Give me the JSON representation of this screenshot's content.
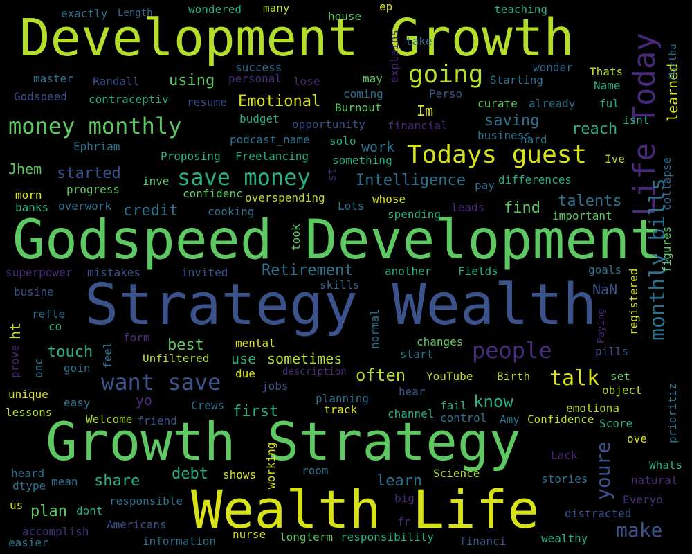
{
  "words": [
    {
      "text": "Development Growth",
      "color": "#b5de2b"
    },
    {
      "text": "Godspeed Development",
      "color": "#5ec962"
    },
    {
      "text": "Strategy Wealth",
      "color": "#3b528b"
    },
    {
      "text": "Growth Strategy",
      "color": "#5ec962"
    },
    {
      "text": "Wealth Life",
      "color": "#d8e219"
    },
    {
      "text": "Life Today",
      "color": "#482878"
    },
    {
      "text": "Todays guest",
      "color": "#d8e219"
    },
    {
      "text": "save money",
      "color": "#29af7f"
    },
    {
      "text": "money monthly",
      "color": "#5ec962"
    },
    {
      "text": "want save",
      "color": "#3b528b"
    },
    {
      "text": "monthly bills",
      "color": "#2c728e"
    },
    {
      "text": "going",
      "color": "#b5de2b"
    },
    {
      "text": "people",
      "color": "#472d7b"
    },
    {
      "text": "talk",
      "color": "#d8e219"
    },
    {
      "text": "make",
      "color": "#3b528b"
    },
    {
      "text": "youre",
      "color": "#3b528b"
    },
    {
      "text": "Intelligence",
      "color": "#2c728e"
    },
    {
      "text": "Emotional",
      "color": "#d8e219"
    },
    {
      "text": "Retirement",
      "color": "#2c728e"
    },
    {
      "text": "saving",
      "color": "#2c728e"
    },
    {
      "text": "started",
      "color": "#3b528b"
    },
    {
      "text": "credit",
      "color": "#2c728e"
    },
    {
      "text": "touch",
      "color": "#29af7f"
    },
    {
      "text": "share",
      "color": "#29af7f"
    },
    {
      "text": "often",
      "color": "#b5de2b"
    },
    {
      "text": "know",
      "color": "#29af7f"
    },
    {
      "text": "learn",
      "color": "#2c728e"
    },
    {
      "text": "first",
      "color": "#29af7f"
    },
    {
      "text": "debt",
      "color": "#29af7f"
    },
    {
      "text": "plan",
      "color": "#5ec962"
    },
    {
      "text": "reach",
      "color": "#29af7f"
    },
    {
      "text": "talents",
      "color": "#2c728e"
    },
    {
      "text": "find",
      "color": "#5ec962"
    },
    {
      "text": "best",
      "color": "#5ec962"
    },
    {
      "text": "sometimes",
      "color": "#b5de2b"
    },
    {
      "text": "use",
      "color": "#29af7f"
    },
    {
      "text": "work",
      "color": "#2c728e"
    },
    {
      "text": "Im",
      "color": "#d8e219"
    },
    {
      "text": "using",
      "color": "#5ec962"
    },
    {
      "text": "Jhem",
      "color": "#5ec962"
    },
    {
      "text": "NaN",
      "color": "#3b528b"
    },
    {
      "text": "learned",
      "color": "#d8e219"
    },
    {
      "text": "yo",
      "color": "#472d7b"
    },
    {
      "text": "ht",
      "color": "#b5de2b"
    },
    {
      "text": "exactly",
      "color": "#2c728e"
    },
    {
      "text": "Length",
      "color": "#31688e"
    },
    {
      "text": "wondered",
      "color": "#29af7f"
    },
    {
      "text": "many",
      "color": "#b5de2b"
    },
    {
      "text": "house",
      "color": "#5ec962"
    },
    {
      "text": "ep",
      "color": "#d8e219"
    },
    {
      "text": "teaching",
      "color": "#29af7f"
    },
    {
      "text": "master",
      "color": "#2c728e"
    },
    {
      "text": "Randall",
      "color": "#3b528b"
    },
    {
      "text": "personal",
      "color": "#472d7b"
    },
    {
      "text": "lose",
      "color": "#472d7b"
    },
    {
      "text": "success",
      "color": "#31688e"
    },
    {
      "text": "explains",
      "color": "#482878"
    },
    {
      "text": "take",
      "color": "#31688e"
    },
    {
      "text": "may",
      "color": "#5ec962"
    },
    {
      "text": "coming",
      "color": "#2c728e"
    },
    {
      "text": "wonder",
      "color": "#31688e"
    },
    {
      "text": "Thats",
      "color": "#b5de2b"
    },
    {
      "text": "Name",
      "color": "#29af7f"
    },
    {
      "text": "Martha",
      "color": "#2c728e"
    },
    {
      "text": "Godspeed",
      "color": "#3b528b"
    },
    {
      "text": "contraceptiv",
      "color": "#29af7f"
    },
    {
      "text": "resume",
      "color": "#3b528b"
    },
    {
      "text": "Burnout",
      "color": "#5ec962"
    },
    {
      "text": "Perso",
      "color": "#3b528b"
    },
    {
      "text": "Starting",
      "color": "#2c728e"
    },
    {
      "text": "curate",
      "color": "#5ec962"
    },
    {
      "text": "already",
      "color": "#2c728e"
    },
    {
      "text": "ful",
      "color": "#29af7f"
    },
    {
      "text": "budget",
      "color": "#29af7f"
    },
    {
      "text": "opportunity",
      "color": "#3b528b"
    },
    {
      "text": "financial",
      "color": "#482878"
    },
    {
      "text": "business",
      "color": "#2c728e"
    },
    {
      "text": "isnt",
      "color": "#29af7f"
    },
    {
      "text": "Ephriam",
      "color": "#2c728e"
    },
    {
      "text": "podcast_name",
      "color": "#2c728e"
    },
    {
      "text": "solo",
      "color": "#29af7f"
    },
    {
      "text": "hard",
      "color": "#2c728e"
    },
    {
      "text": "Proposing",
      "color": "#29af7f"
    },
    {
      "text": "Freelancing",
      "color": "#29af7f"
    },
    {
      "text": "something",
      "color": "#29af7f"
    },
    {
      "text": "Ive",
      "color": "#b5de2b"
    },
    {
      "text": "collapse",
      "color": "#31688e"
    },
    {
      "text": "st",
      "color": "#482878"
    },
    {
      "text": "pay",
      "color": "#2c728e"
    },
    {
      "text": "differences",
      "color": "#29af7f"
    },
    {
      "text": "morn",
      "color": "#d8e219"
    },
    {
      "text": "progress",
      "color": "#5ec962"
    },
    {
      "text": "inve",
      "color": "#5ec962"
    },
    {
      "text": "confidenc",
      "color": "#5ec962"
    },
    {
      "text": "overspending",
      "color": "#b5de2b"
    },
    {
      "text": "banks",
      "color": "#29af7f"
    },
    {
      "text": "overwork",
      "color": "#2c728e"
    },
    {
      "text": "cooking",
      "color": "#2c728e"
    },
    {
      "text": "Lots",
      "color": "#2c728e"
    },
    {
      "text": "whose",
      "color": "#d8e219"
    },
    {
      "text": "leads",
      "color": "#482878"
    },
    {
      "text": "spending",
      "color": "#29af7f"
    },
    {
      "text": "important",
      "color": "#5ec962"
    },
    {
      "text": "figures",
      "color": "#5ec962"
    },
    {
      "text": "took",
      "color": "#5ec962"
    },
    {
      "text": "superpower",
      "color": "#472d7b"
    },
    {
      "text": "mistakes",
      "color": "#3b528b"
    },
    {
      "text": "invited",
      "color": "#3b528b"
    },
    {
      "text": "another",
      "color": "#29af7f"
    },
    {
      "text": "Fields",
      "color": "#29af7f"
    },
    {
      "text": "goals",
      "color": "#2c728e"
    },
    {
      "text": "registered",
      "color": "#d8e219"
    },
    {
      "text": "busine",
      "color": "#3b528b"
    },
    {
      "text": "skills",
      "color": "#31688e"
    },
    {
      "text": "refle",
      "color": "#2c728e"
    },
    {
      "text": "co",
      "color": "#29af7f"
    },
    {
      "text": "normal",
      "color": "#2c728e"
    },
    {
      "text": "Paying",
      "color": "#472d7b"
    },
    {
      "text": "form",
      "color": "#472d7b"
    },
    {
      "text": "mental",
      "color": "#d8e219"
    },
    {
      "text": "changes",
      "color": "#5ec962"
    },
    {
      "text": "pills",
      "color": "#3b528b"
    },
    {
      "text": "prove",
      "color": "#482878"
    },
    {
      "text": "onc",
      "color": "#2c728e"
    },
    {
      "text": "feel",
      "color": "#2c728e"
    },
    {
      "text": "Unfiltered",
      "color": "#b5de2b"
    },
    {
      "text": "start",
      "color": "#2c728e"
    },
    {
      "text": "prioritiz",
      "color": "#2c728e"
    },
    {
      "text": "goin",
      "color": "#2c728e"
    },
    {
      "text": "due",
      "color": "#d8e219"
    },
    {
      "text": "description",
      "color": "#472d7b"
    },
    {
      "text": "YouTube",
      "color": "#b5de2b"
    },
    {
      "text": "Birth",
      "color": "#b5de2b"
    },
    {
      "text": "set",
      "color": "#5ec962"
    },
    {
      "text": "unique",
      "color": "#d8e219"
    },
    {
      "text": "jobs",
      "color": "#3b528b"
    },
    {
      "text": "hear",
      "color": "#3b528b"
    },
    {
      "text": "object",
      "color": "#b5de2b"
    },
    {
      "text": "easy",
      "color": "#2c728e"
    },
    {
      "text": "Crews",
      "color": "#2c728e"
    },
    {
      "text": "planning",
      "color": "#2c728e"
    },
    {
      "text": "fail",
      "color": "#29af7f"
    },
    {
      "text": "emotiona",
      "color": "#b5de2b"
    },
    {
      "text": "lessons",
      "color": "#b5de2b"
    },
    {
      "text": "Welcome",
      "color": "#b5de2b"
    },
    {
      "text": "friend",
      "color": "#3b528b"
    },
    {
      "text": "track",
      "color": "#d8e219"
    },
    {
      "text": "channel",
      "color": "#29af7f"
    },
    {
      "text": "control",
      "color": "#2c728e"
    },
    {
      "text": "Amy",
      "color": "#2c728e"
    },
    {
      "text": "Confidence",
      "color": "#b5de2b"
    },
    {
      "text": "Score",
      "color": "#29af7f"
    },
    {
      "text": "ove",
      "color": "#d8e219"
    },
    {
      "text": "Lack",
      "color": "#482878"
    },
    {
      "text": "Whats",
      "color": "#29af7f"
    },
    {
      "text": "heard",
      "color": "#2c728e"
    },
    {
      "text": "mean",
      "color": "#2c728e"
    },
    {
      "text": "working",
      "color": "#d8e219"
    },
    {
      "text": "shows",
      "color": "#d8e219"
    },
    {
      "text": "room",
      "color": "#2c728e"
    },
    {
      "text": "Science",
      "color": "#b5de2b"
    },
    {
      "text": "stories",
      "color": "#2c728e"
    },
    {
      "text": "natural",
      "color": "#472d7b"
    },
    {
      "text": "dtype",
      "color": "#2c728e"
    },
    {
      "text": "responsible",
      "color": "#2c728e"
    },
    {
      "text": "big",
      "color": "#482878"
    },
    {
      "text": "Everyo",
      "color": "#472d7b"
    },
    {
      "text": "us",
      "color": "#d8e219"
    },
    {
      "text": "dont",
      "color": "#29af7f"
    },
    {
      "text": "distracted",
      "color": "#3b528b"
    },
    {
      "text": "accomplish",
      "color": "#472d7b"
    },
    {
      "text": "Americans",
      "color": "#3b528b"
    },
    {
      "text": "fr",
      "color": "#482878"
    },
    {
      "text": "easier",
      "color": "#2c728e"
    },
    {
      "text": "information",
      "color": "#2c728e"
    },
    {
      "text": "nurse",
      "color": "#d8e219"
    },
    {
      "text": "longterm",
      "color": "#5ec962"
    },
    {
      "text": "responsibility",
      "color": "#29af7f"
    },
    {
      "text": "financi",
      "color": "#3b528b"
    },
    {
      "text": "wealthy",
      "color": "#29af7f"
    }
  ]
}
